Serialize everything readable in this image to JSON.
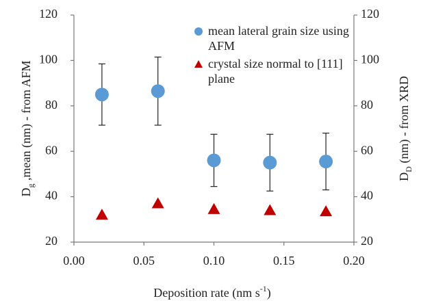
{
  "chart_data": {
    "type": "scatter",
    "xlabel": [
      "Deposition rate (nm s",
      "-1",
      ")"
    ],
    "ylabel": [
      "D",
      "g",
      " ,mean (nm) - from AFM"
    ],
    "y2label": [
      "D",
      "D",
      " (nm) - from XRD"
    ],
    "xlim": [
      0,
      0.2
    ],
    "xticks": [
      {
        "value": 0,
        "label": "0.00"
      },
      {
        "value": 0.05,
        "label": "0.05"
      },
      {
        "value": 0.1,
        "label": "0.10"
      },
      {
        "value": 0.15,
        "label": "0.15"
      },
      {
        "value": 0.2,
        "label": "0.20"
      }
    ],
    "ylim": [
      20,
      120
    ],
    "yticks": [
      20,
      40,
      60,
      80,
      100,
      120
    ],
    "y2lim": [
      20,
      120
    ],
    "y2ticks": [
      20,
      40,
      60,
      80,
      100,
      120
    ],
    "legend": "top-right",
    "series": [
      {
        "name": "mean lateral grain size using AFM",
        "color": "#5b9bd5",
        "marker": "circle",
        "x": [
          0.02,
          0.06,
          0.1,
          0.14,
          0.18
        ],
        "values": [
          85,
          86.5,
          56,
          55,
          55.5
        ],
        "errors": [
          13.5,
          15,
          11.5,
          12.5,
          12.5
        ]
      },
      {
        "name": "crystal size normal to [111] plane",
        "color": "#c00000",
        "marker": "triangle",
        "axis": "y2",
        "x": [
          0.02,
          0.06,
          0.1,
          0.14,
          0.18
        ],
        "values": [
          32,
          37,
          34.5,
          34,
          33.5
        ]
      }
    ]
  }
}
